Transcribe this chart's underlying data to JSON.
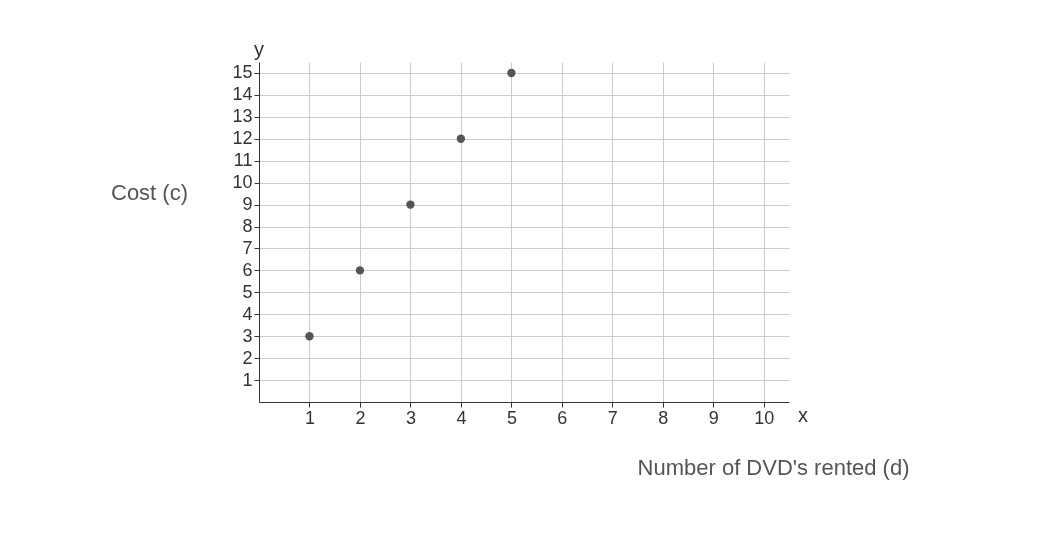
{
  "chart_data": {
    "type": "scatter",
    "xlabel": "Number of DVD's rented (d)",
    "ylabel": "Cost (c)",
    "x": [
      1,
      2,
      3,
      4,
      5
    ],
    "values": [
      3,
      6,
      9,
      12,
      15
    ],
    "color": "#555555",
    "xlim": [
      0,
      10.5
    ],
    "ylim": [
      0,
      15.5
    ],
    "xticks": [
      1,
      2,
      3,
      4,
      5,
      6,
      7,
      8,
      9,
      10
    ],
    "yticks": [
      1,
      2,
      3,
      4,
      5,
      6,
      7,
      8,
      9,
      10,
      11,
      12,
      13,
      14,
      15
    ],
    "grid": true,
    "marker": "circle",
    "annotations": [
      "y",
      "x"
    ]
  }
}
